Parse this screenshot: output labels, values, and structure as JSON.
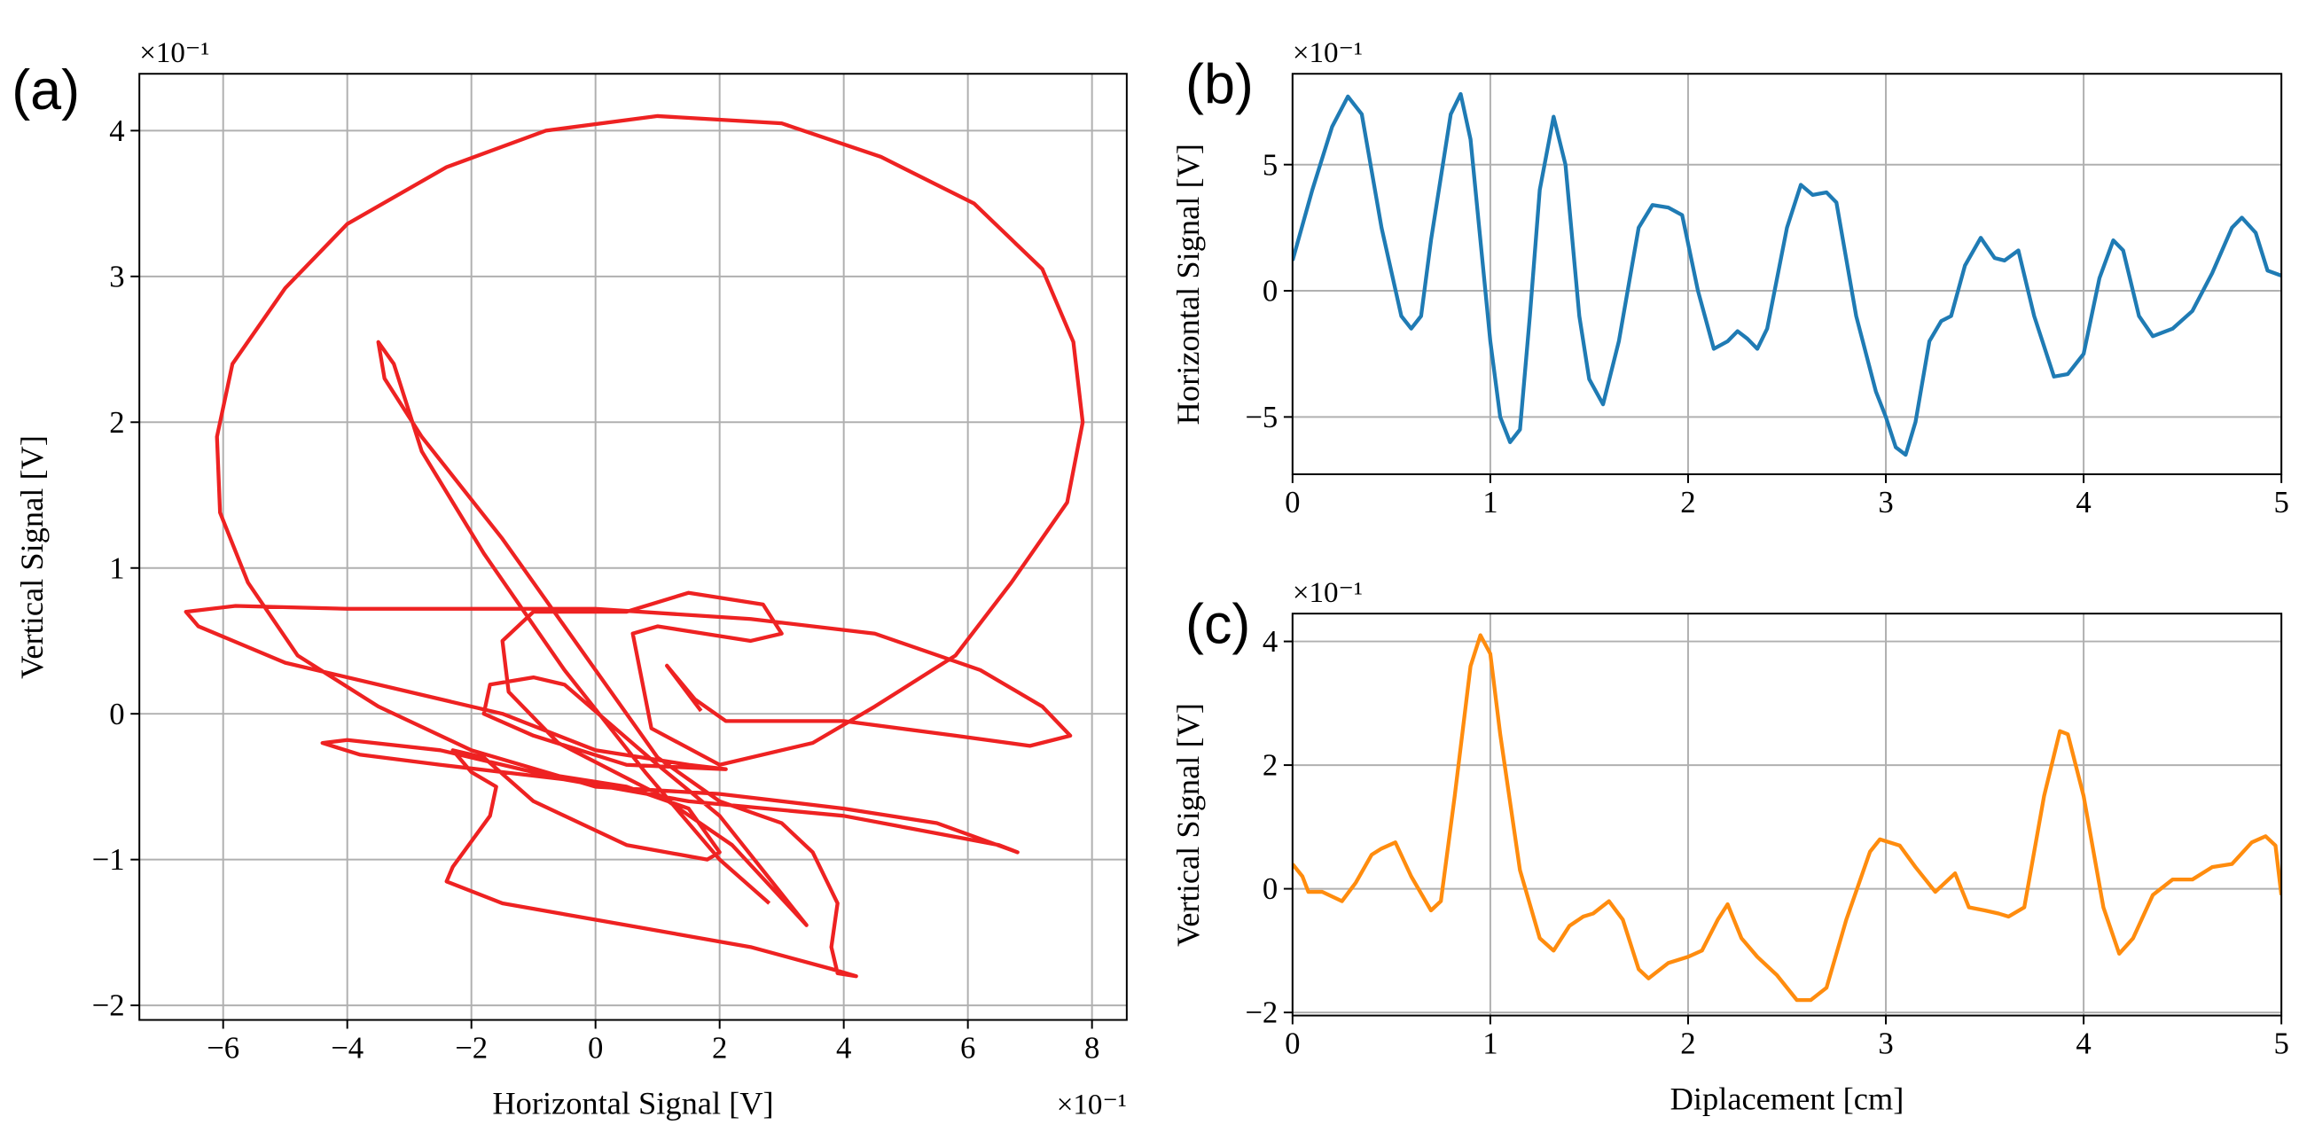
{
  "chart_data": [
    {
      "type": "line",
      "panel_label": "(a)",
      "xlabel": "Horizontal Signal [V]",
      "ylabel": "Vertical Signal [V]",
      "x_offset": "×10⁻¹",
      "y_offset": "×10⁻¹",
      "color": "#ee2222",
      "grid": true,
      "xlim": [
        -7.35,
        8.56
      ],
      "ylim": [
        -2.1,
        4.39
      ],
      "xticks": [
        {
          "value": -6,
          "label": "−6"
        },
        {
          "value": -4,
          "label": "−4"
        },
        {
          "value": -2,
          "label": "−2"
        },
        0,
        2,
        4,
        6,
        8
      ],
      "yticks": [
        {
          "value": -2,
          "label": "−2"
        },
        {
          "value": -1,
          "label": "−1"
        },
        0,
        1,
        2,
        3,
        4
      ],
      "x": [
        1.7,
        1.15,
        1.6,
        2.1,
        4.0,
        5.8,
        7.0,
        7.65,
        7.2,
        6.2,
        4.5,
        2.5,
        0,
        -2,
        -4,
        -5.8,
        -6.6,
        -6.4,
        -5,
        -3,
        -1.5,
        0,
        1.5,
        2.1,
        0.5,
        -1,
        -1.8,
        -1.7,
        -1.0,
        -0.5,
        1.0,
        2.0,
        3.4,
        2.2,
        1.0,
        -0.6,
        -1.4,
        -1.5,
        -1.0,
        0.5,
        1.5,
        2.7,
        3.0,
        2.5,
        1.0,
        0.6,
        0.9,
        2.0,
        3.5,
        4.5,
        5.8,
        6.7,
        7.6,
        7.85,
        7.7,
        7.2,
        6.1,
        4.6,
        3,
        1,
        -0.8,
        -2.4,
        -4,
        -5,
        -5.85,
        -6.1,
        -6.05,
        -5.6,
        -4.8,
        -3.5,
        -2,
        0,
        2,
        4,
        5.5,
        6.8,
        6.5,
        4,
        1.5,
        -0.5,
        -2.5,
        -3.8,
        -4.4,
        -4,
        -2.5,
        -1.0,
        0.5,
        1.5,
        2.0,
        1.8,
        0.5,
        -1.0,
        -1.8,
        -2.3,
        -2.0,
        -1.6,
        -1.7,
        -2.3,
        -2.4,
        -1.5,
        0.5,
        2.5,
        3.8,
        4.2,
        3.9,
        3.8,
        3.9,
        3.5,
        3.0,
        2.0,
        1.0,
        0,
        -1.5,
        -2.8,
        -3.4,
        -3.5,
        -3.25,
        -2.8,
        -1.8,
        -0.5,
        0.8,
        2.0,
        2.8
      ],
      "y": [
        0.02,
        0.33,
        0.1,
        -0.05,
        -0.05,
        -0.15,
        -0.22,
        -0.15,
        0.05,
        0.3,
        0.55,
        0.65,
        0.72,
        0.72,
        0.72,
        0.74,
        0.7,
        0.6,
        0.35,
        0.15,
        0.0,
        -0.25,
        -0.35,
        -0.38,
        -0.35,
        -0.15,
        0.0,
        0.2,
        0.25,
        0.2,
        -0.35,
        -0.7,
        -1.45,
        -0.9,
        -0.55,
        -0.2,
        0.15,
        0.5,
        0.7,
        0.7,
        0.83,
        0.75,
        0.55,
        0.5,
        0.6,
        0.55,
        -0.1,
        -0.35,
        -0.2,
        0.05,
        0.4,
        0.9,
        1.45,
        2.0,
        2.55,
        3.05,
        3.5,
        3.82,
        4.05,
        4.1,
        4.0,
        3.75,
        3.36,
        2.92,
        2.4,
        1.9,
        1.38,
        0.9,
        0.4,
        0.05,
        -0.25,
        -0.5,
        -0.55,
        -0.65,
        -0.75,
        -0.95,
        -0.9,
        -0.7,
        -0.6,
        -0.45,
        -0.35,
        -0.28,
        -0.2,
        -0.18,
        -0.25,
        -0.4,
        -0.5,
        -0.65,
        -0.95,
        -1.0,
        -0.9,
        -0.6,
        -0.3,
        -0.25,
        -0.4,
        -0.5,
        -0.7,
        -1.05,
        -1.15,
        -1.3,
        -1.45,
        -1.6,
        -1.75,
        -1.8,
        -1.78,
        -1.6,
        -1.3,
        -0.95,
        -0.75,
        -0.6,
        -0.3,
        0.3,
        1.2,
        1.9,
        2.3,
        2.55,
        2.4,
        1.8,
        1.1,
        0.3,
        -0.4,
        -1.0,
        -1.3
      ]
    },
    {
      "type": "line",
      "panel_label": "(b)",
      "ylabel": "Horizontal Signal [V]",
      "y_offset": "×10⁻¹",
      "color": "#1f7bb4",
      "grid": true,
      "xlim": [
        0,
        5
      ],
      "ylim": [
        -7.27,
        8.6
      ],
      "xticks": [
        0,
        1,
        2,
        3,
        4,
        5
      ],
      "yticks": [
        {
          "value": -5,
          "label": "−5"
        },
        0,
        5
      ],
      "x": [
        0,
        0.1,
        0.2,
        0.28,
        0.35,
        0.45,
        0.55,
        0.6,
        0.65,
        0.7,
        0.8,
        0.85,
        0.9,
        1.0,
        1.05,
        1.1,
        1.15,
        1.2,
        1.25,
        1.32,
        1.38,
        1.45,
        1.5,
        1.57,
        1.65,
        1.75,
        1.82,
        1.9,
        1.97,
        2.05,
        2.13,
        2.2,
        2.25,
        2.3,
        2.35,
        2.4,
        2.5,
        2.57,
        2.63,
        2.7,
        2.75,
        2.85,
        2.95,
        3.0,
        3.05,
        3.1,
        3.15,
        3.22,
        3.28,
        3.33,
        3.4,
        3.48,
        3.55,
        3.6,
        3.67,
        3.75,
        3.85,
        3.92,
        4.0,
        4.08,
        4.15,
        4.2,
        4.28,
        4.35,
        4.45,
        4.55,
        4.65,
        4.75,
        4.8,
        4.87,
        4.93,
        5.0
      ],
      "y": [
        1.2,
        4,
        6.5,
        7.7,
        7,
        2.5,
        -1,
        -1.5,
        -1,
        2,
        7,
        7.8,
        6,
        -2,
        -5,
        -6,
        -5.5,
        -1,
        4,
        6.9,
        5,
        -1,
        -3.5,
        -4.5,
        -2,
        2.5,
        3.4,
        3.3,
        3.0,
        0,
        -2.3,
        -2.0,
        -1.6,
        -1.9,
        -2.3,
        -1.5,
        2.5,
        4.2,
        3.8,
        3.9,
        3.5,
        -1,
        -4,
        -5,
        -6.2,
        -6.5,
        -5.2,
        -2,
        -1.2,
        -1,
        1,
        2.1,
        1.3,
        1.2,
        1.6,
        -1,
        -3.4,
        -3.3,
        -2.5,
        0.5,
        2.0,
        1.6,
        -1,
        -1.8,
        -1.5,
        -0.8,
        0.7,
        2.5,
        2.9,
        2.3,
        0.8,
        0.6
      ]
    },
    {
      "type": "line",
      "panel_label": "(c)",
      "xlabel": "Diplacement [cm]",
      "ylabel": "Vertical Signal [V]",
      "y_offset": "×10⁻¹",
      "color": "#ff8c0e",
      "grid": true,
      "xlim": [
        0,
        5
      ],
      "ylim": [
        -2.05,
        4.45
      ],
      "xticks": [
        0,
        1,
        2,
        3,
        4,
        5
      ],
      "yticks": [
        {
          "value": -2,
          "label": "−2"
        },
        0,
        2,
        4
      ],
      "x": [
        0,
        0.05,
        0.08,
        0.15,
        0.25,
        0.32,
        0.4,
        0.45,
        0.52,
        0.6,
        0.7,
        0.75,
        0.82,
        0.9,
        0.95,
        1.0,
        1.05,
        1.15,
        1.25,
        1.32,
        1.4,
        1.47,
        1.52,
        1.6,
        1.67,
        1.75,
        1.8,
        1.9,
        2.0,
        2.07,
        2.15,
        2.2,
        2.27,
        2.35,
        2.45,
        2.55,
        2.62,
        2.7,
        2.8,
        2.92,
        2.97,
        3.07,
        3.15,
        3.25,
        3.35,
        3.42,
        3.5,
        3.57,
        3.62,
        3.7,
        3.8,
        3.88,
        3.92,
        4.0,
        4.1,
        4.18,
        4.25,
        4.35,
        4.45,
        4.55,
        4.65,
        4.75,
        4.85,
        4.92,
        4.97,
        5.0
      ],
      "y": [
        0.4,
        0.2,
        -0.05,
        -0.05,
        -0.2,
        0.1,
        0.55,
        0.65,
        0.75,
        0.2,
        -0.35,
        -0.2,
        1.5,
        3.6,
        4.1,
        3.8,
        2.5,
        0.3,
        -0.8,
        -1.0,
        -0.6,
        -0.45,
        -0.4,
        -0.2,
        -0.5,
        -1.3,
        -1.45,
        -1.2,
        -1.1,
        -1.0,
        -0.5,
        -0.25,
        -0.8,
        -1.1,
        -1.4,
        -1.8,
        -1.8,
        -1.6,
        -0.5,
        0.6,
        0.8,
        0.7,
        0.35,
        -0.05,
        0.25,
        -0.3,
        -0.35,
        -0.4,
        -0.45,
        -0.3,
        1.5,
        2.55,
        2.5,
        1.5,
        -0.3,
        -1.05,
        -0.8,
        -0.1,
        0.15,
        0.15,
        0.35,
        0.4,
        0.75,
        0.85,
        0.7,
        -0.1
      ]
    }
  ]
}
